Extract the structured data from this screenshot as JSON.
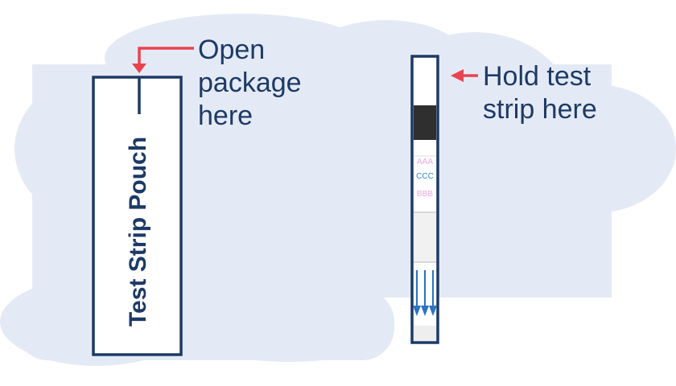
{
  "pouch": {
    "label": "Test Strip Pouch"
  },
  "callouts": {
    "open_package": [
      "Open",
      "package",
      "here"
    ],
    "hold_strip": [
      "Hold test",
      "strip here"
    ]
  },
  "strip": {
    "line_labels": [
      "AAA",
      "CCC",
      "BBB"
    ],
    "line_colors": [
      "#e7a8e2",
      "#2f86c8",
      "#e7a8e2"
    ]
  },
  "colors": {
    "cloud": "#e4eaf5",
    "outline": "#1d3a66",
    "arrow_red": "#e8434f",
    "strip_grey": "#eeeeee",
    "strip_dark": "#2f2f2f",
    "flow_blue": "#2d74c0"
  }
}
